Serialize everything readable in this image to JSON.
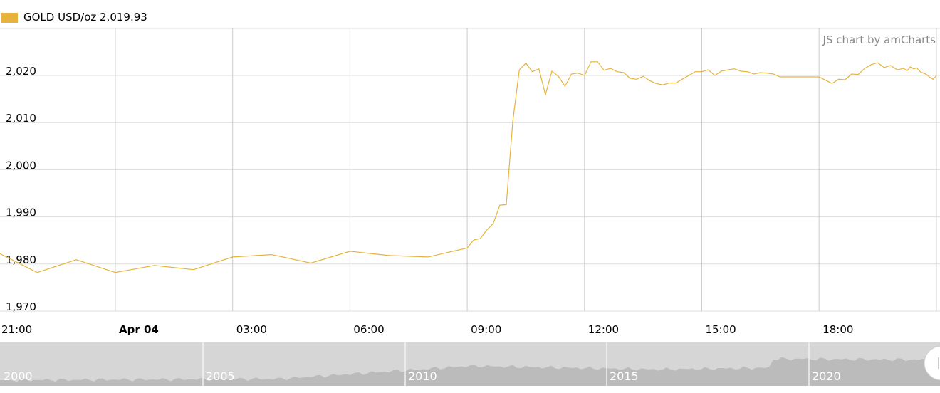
{
  "legend": {
    "label": "GOLD USD/oz 2,019.93",
    "color": "#e6b43c"
  },
  "credit": "JS chart by amCharts",
  "chart_data": {
    "type": "line",
    "title": "",
    "xlabel": "",
    "ylabel": "",
    "ylim": [
      1970,
      2030
    ],
    "grid": true,
    "legend_position": "top-left",
    "y_ticks": [
      "1,970",
      "1,980",
      "1,990",
      "2,000",
      "2,010",
      "2,020"
    ],
    "y_tick_values": [
      1970,
      1980,
      1990,
      2000,
      2010,
      2020
    ],
    "x_ticks": [
      "21:00",
      "Apr 04",
      "03:00",
      "06:00",
      "09:00",
      "12:00",
      "15:00",
      "18:00"
    ],
    "x_range": [
      "Apr 03 21:00",
      "Apr 04 21:05"
    ],
    "series": [
      {
        "name": "GOLD USD/oz",
        "color": "#e6b43c",
        "points": [
          [
            "Apr 03 21:00",
            1982.4
          ],
          [
            "Apr 03 22:00",
            1978.2
          ],
          [
            "Apr 03 23:00",
            1980.9
          ],
          [
            "Apr 04 00:00",
            1978.2
          ],
          [
            "Apr 04 01:00",
            1979.7
          ],
          [
            "Apr 04 02:00",
            1978.8
          ],
          [
            "Apr 04 03:00",
            1981.5
          ],
          [
            "Apr 04 04:00",
            1982.0
          ],
          [
            "Apr 04 05:00",
            1980.2
          ],
          [
            "Apr 04 06:00",
            1982.7
          ],
          [
            "Apr 04 07:00",
            1981.8
          ],
          [
            "Apr 04 08:00",
            1981.5
          ],
          [
            "Apr 04 09:00",
            1983.4
          ],
          [
            "Apr 04 09:10",
            1985.1
          ],
          [
            "Apr 04 09:20",
            1985.4
          ],
          [
            "Apr 04 09:30",
            1987.2
          ],
          [
            "Apr 04 09:40",
            1988.6
          ],
          [
            "Apr 04 09:50",
            1992.5
          ],
          [
            "Apr 04 10:00",
            1992.6
          ],
          [
            "Apr 04 10:10",
            2010.3
          ],
          [
            "Apr 04 10:20",
            2021.2
          ],
          [
            "Apr 04 10:30",
            2022.6
          ],
          [
            "Apr 04 10:40",
            2020.8
          ],
          [
            "Apr 04 10:50",
            2021.4
          ],
          [
            "Apr 04 11:00",
            2015.9
          ],
          [
            "Apr 04 11:10",
            2020.9
          ],
          [
            "Apr 04 11:20",
            2019.8
          ],
          [
            "Apr 04 11:30",
            2017.7
          ],
          [
            "Apr 04 11:40",
            2020.3
          ],
          [
            "Apr 04 11:50",
            2020.5
          ],
          [
            "Apr 04 12:00",
            2020.0
          ],
          [
            "Apr 04 12:10",
            2022.9
          ],
          [
            "Apr 04 12:20",
            2022.9
          ],
          [
            "Apr 04 12:30",
            2021.1
          ],
          [
            "Apr 04 12:40",
            2021.5
          ],
          [
            "Apr 04 12:50",
            2020.8
          ],
          [
            "Apr 04 13:00",
            2020.6
          ],
          [
            "Apr 04 13:10",
            2019.4
          ],
          [
            "Apr 04 13:20",
            2019.2
          ],
          [
            "Apr 04 13:30",
            2019.8
          ],
          [
            "Apr 04 13:40",
            2018.9
          ],
          [
            "Apr 04 13:50",
            2018.3
          ],
          [
            "Apr 04 14:00",
            2018.0
          ],
          [
            "Apr 04 14:10",
            2018.4
          ],
          [
            "Apr 04 14:20",
            2018.4
          ],
          [
            "Apr 04 14:30",
            2019.2
          ],
          [
            "Apr 04 14:40",
            2020.0
          ],
          [
            "Apr 04 14:50",
            2020.8
          ],
          [
            "Apr 04 15:00",
            2020.8
          ],
          [
            "Apr 04 15:10",
            2021.2
          ],
          [
            "Apr 04 15:20",
            2020.0
          ],
          [
            "Apr 04 15:30",
            2020.9
          ],
          [
            "Apr 04 15:40",
            2021.2
          ],
          [
            "Apr 04 15:50",
            2021.4
          ],
          [
            "Apr 04 16:00",
            2020.9
          ],
          [
            "Apr 04 16:10",
            2020.8
          ],
          [
            "Apr 04 16:20",
            2020.3
          ],
          [
            "Apr 04 16:30",
            2020.6
          ],
          [
            "Apr 04 16:40",
            2020.5
          ],
          [
            "Apr 04 16:50",
            2020.3
          ],
          [
            "Apr 04 17:00",
            2019.7
          ],
          [
            "Apr 04 18:00",
            2019.7
          ],
          [
            "Apr 04 18:20",
            2018.3
          ],
          [
            "Apr 04 18:30",
            2019.2
          ],
          [
            "Apr 04 18:40",
            2019.1
          ],
          [
            "Apr 04 18:50",
            2020.3
          ],
          [
            "Apr 04 19:00",
            2020.2
          ],
          [
            "Apr 04 19:10",
            2021.5
          ],
          [
            "Apr 04 19:20",
            2022.3
          ],
          [
            "Apr 04 19:30",
            2022.7
          ],
          [
            "Apr 04 19:40",
            2021.7
          ],
          [
            "Apr 04 19:50",
            2022.1
          ],
          [
            "Apr 04 20:00",
            2021.2
          ],
          [
            "Apr 04 20:10",
            2021.5
          ],
          [
            "Apr 04 20:15",
            2021.0
          ],
          [
            "Apr 04 20:20",
            2021.8
          ],
          [
            "Apr 04 20:25",
            2021.4
          ],
          [
            "Apr 04 20:30",
            2021.6
          ],
          [
            "Apr 04 20:35",
            2020.8
          ],
          [
            "Apr 04 20:40",
            2020.5
          ],
          [
            "Apr 04 20:45",
            2020.2
          ],
          [
            "Apr 04 20:50",
            2019.6
          ],
          [
            "Apr 04 20:55",
            2019.2
          ],
          [
            "Apr 04 21:00",
            2019.93
          ]
        ]
      }
    ]
  },
  "scrollbar": {
    "year_labels": [
      "2000",
      "2005",
      "2010",
      "2015",
      "2020"
    ]
  }
}
